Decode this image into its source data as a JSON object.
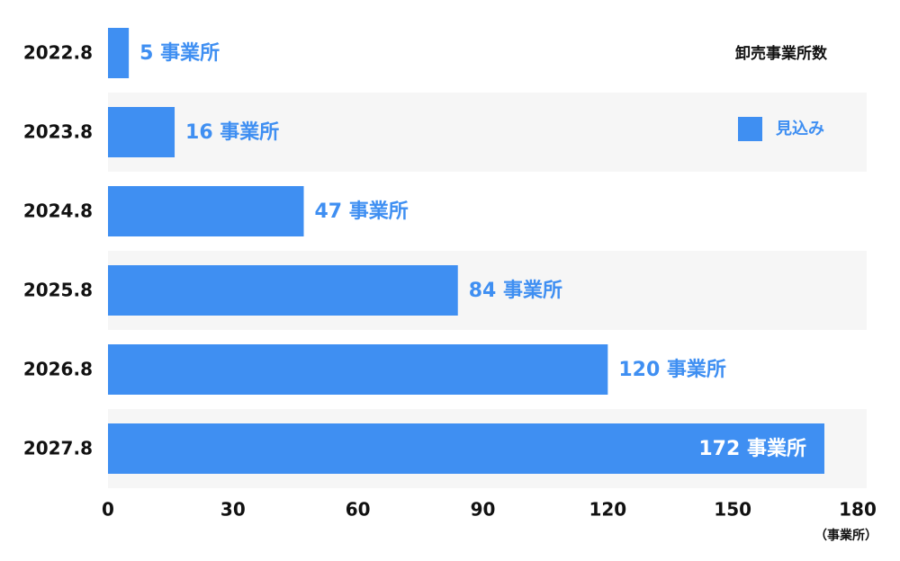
{
  "chart_data": {
    "type": "bar",
    "orientation": "horizontal",
    "categories": [
      "2022.8",
      "2023.8",
      "2024.8",
      "2025.8",
      "2026.8",
      "2027.8"
    ],
    "legend_title": "卸売事業所数",
    "series": [
      {
        "name": "見込み",
        "color": "#3f8ff2",
        "values": [
          5,
          16,
          47,
          84,
          120,
          172
        ],
        "value_labels": [
          "5 事業所",
          "16 事業所",
          "47 事業所",
          "84 事業所",
          "120 事業所",
          "172 事業所"
        ]
      }
    ],
    "xlim": [
      0,
      180
    ],
    "xticks": [
      0,
      30,
      60,
      90,
      120,
      150,
      180
    ],
    "x_axis_label": "（事業所）"
  }
}
